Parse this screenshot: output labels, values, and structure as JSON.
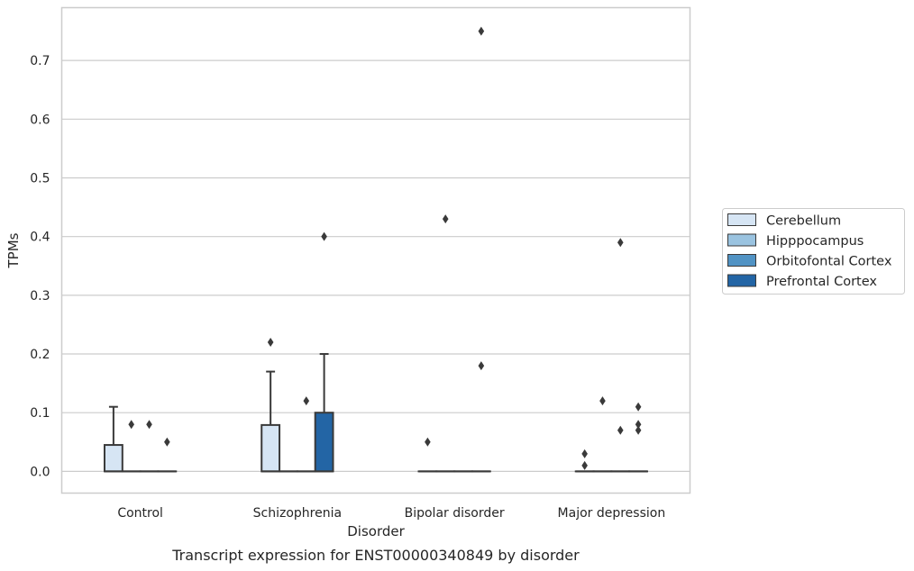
{
  "caption": "Transcript expression for ENST00000340849 by disorder",
  "chart_data": {
    "type": "box",
    "xlabel": "Disorder",
    "ylabel": "TPMs",
    "ylim": [
      -0.037,
      0.79
    ],
    "yticks": [
      "0.0",
      "0.1",
      "0.2",
      "0.3",
      "0.4",
      "0.5",
      "0.6",
      "0.7"
    ],
    "ytick_values": [
      0,
      0.1,
      0.2,
      0.3,
      0.4,
      0.5,
      0.6,
      0.7
    ],
    "grid": true,
    "legend_position": "right",
    "categories": [
      "Control",
      "Schizophrenia",
      "Bipolar disorder",
      "Major depression"
    ],
    "series": [
      {
        "name": "Cerebellum",
        "color": "#d6e5f4",
        "boxes": [
          {
            "q1": 0,
            "median": 0,
            "q3": 0.045,
            "whisker_low": 0,
            "whisker_high": 0.11,
            "outliers": []
          },
          {
            "q1": 0,
            "median": 0,
            "q3": 0.079,
            "whisker_low": 0,
            "whisker_high": 0.17,
            "outliers": [
              0.22
            ]
          },
          {
            "q1": 0,
            "median": 0,
            "q3": 0,
            "whisker_low": 0,
            "whisker_high": 0,
            "outliers": [
              0.05
            ]
          },
          {
            "q1": 0,
            "median": 0,
            "q3": 0,
            "whisker_low": 0,
            "whisker_high": 0,
            "outliers": [
              0.03,
              0.01
            ]
          }
        ]
      },
      {
        "name": "Hipppocampus",
        "color": "#9ac3e0",
        "boxes": [
          {
            "q1": 0,
            "median": 0,
            "q3": 0,
            "whisker_low": 0,
            "whisker_high": 0,
            "outliers": [
              0.08
            ]
          },
          {
            "q1": 0,
            "median": 0,
            "q3": 0,
            "whisker_low": 0,
            "whisker_high": 0,
            "outliers": []
          },
          {
            "q1": 0,
            "median": 0,
            "q3": 0,
            "whisker_low": 0,
            "whisker_high": 0,
            "outliers": [
              0.43
            ]
          },
          {
            "q1": 0,
            "median": 0,
            "q3": 0,
            "whisker_low": 0,
            "whisker_high": 0,
            "outliers": [
              0.12
            ]
          }
        ]
      },
      {
        "name": "Orbitofontal Cortex",
        "color": "#5193c4",
        "boxes": [
          {
            "q1": 0,
            "median": 0,
            "q3": 0,
            "whisker_low": 0,
            "whisker_high": 0,
            "outliers": [
              0.08
            ]
          },
          {
            "q1": 0,
            "median": 0,
            "q3": 0,
            "whisker_low": 0,
            "whisker_high": 0,
            "outliers": [
              0.12
            ]
          },
          {
            "q1": 0,
            "median": 0,
            "q3": 0,
            "whisker_low": 0,
            "whisker_high": 0,
            "outliers": []
          },
          {
            "q1": 0,
            "median": 0,
            "q3": 0,
            "whisker_low": 0,
            "whisker_high": 0,
            "outliers": [
              0.39,
              0.07
            ]
          }
        ]
      },
      {
        "name": "Prefrontal Cortex",
        "color": "#2365a5",
        "boxes": [
          {
            "q1": 0,
            "median": 0,
            "q3": 0,
            "whisker_low": 0,
            "whisker_high": 0,
            "outliers": [
              0.05
            ]
          },
          {
            "q1": 0,
            "median": 0,
            "q3": 0.1,
            "whisker_low": 0,
            "whisker_high": 0.2,
            "outliers": [
              0.4
            ]
          },
          {
            "q1": 0,
            "median": 0,
            "q3": 0,
            "whisker_low": 0,
            "whisker_high": 0,
            "outliers": [
              0.75,
              0.18
            ]
          },
          {
            "q1": 0,
            "median": 0,
            "q3": 0,
            "whisker_low": 0,
            "whisker_high": 0,
            "outliers": [
              0.11,
              0.08,
              0.07
            ]
          }
        ]
      }
    ]
  }
}
